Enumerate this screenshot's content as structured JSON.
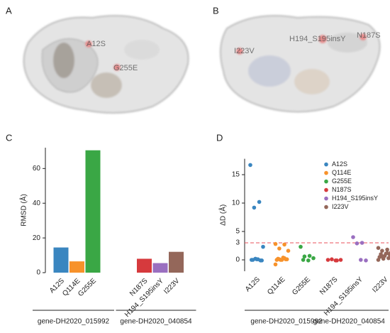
{
  "panels": [
    {
      "label": "A",
      "annotations": [
        "A12S",
        "G255E"
      ]
    },
    {
      "label": "B",
      "annotations": [
        "I223V",
        "H194_S195insY",
        "N187S"
      ]
    }
  ],
  "chart_data": [
    {
      "type": "bar",
      "panel_label": "C",
      "ylabel": "RMSD (Å)",
      "ylim": [
        0,
        72
      ],
      "yticks": [
        0,
        20,
        40,
        60
      ],
      "groups": [
        {
          "label": "gene-DH2020_015992",
          "categories": [
            "A12S",
            "Q114E",
            "G255E"
          ],
          "values": [
            14.5,
            6.5,
            70.5
          ],
          "colors": [
            "#3a86c0",
            "#f7922b",
            "#3aa745"
          ]
        },
        {
          "label": "gene-DH2020_040854",
          "categories": [
            "N187S",
            "H194_S195insY",
            "I223V"
          ],
          "values": [
            8,
            5.5,
            12
          ],
          "colors": [
            "#d63a3d",
            "#9a6fc0",
            "#94675a"
          ]
        }
      ]
    },
    {
      "type": "strip",
      "panel_label": "D",
      "ylabel": "ΔD (Å)",
      "ylim": [
        -2,
        17.8
      ],
      "yticks": [
        0,
        5,
        10,
        15
      ],
      "threshold": 3,
      "threshold_color": "#e8505b",
      "legend": "upper right",
      "groups": [
        {
          "label": "gene-DH2020_015992",
          "series": [
            {
              "name": "A12S",
              "color": "#3a86c0",
              "values": [
                16.7,
                10.2,
                9.2,
                2.3,
                0.1,
                0,
                -0.1,
                0.1,
                0,
                -0.1,
                0.2
              ]
            },
            {
              "name": "Q114E",
              "color": "#f7922b",
              "values": [
                2.8,
                2.7,
                2,
                1.6,
                0.4,
                0.2,
                0.1,
                0,
                0,
                0.1,
                0,
                -0.8,
                0.3,
                0.1
              ]
            },
            {
              "name": "G255E",
              "color": "#3aa745",
              "values": [
                2.3,
                0.7,
                0.6,
                0.3,
                -0.1,
                0
              ]
            }
          ]
        },
        {
          "label": "gene-DH2020_040854",
          "series": [
            {
              "name": "N187S",
              "color": "#d63a3d",
              "values": [
                0,
                -0.1,
                0.1,
                0,
                -0.1
              ]
            },
            {
              "name": "H194_S195insY",
              "color": "#9a6fc0",
              "values": [
                4,
                3,
                2.9,
                -0.1,
                0
              ]
            },
            {
              "name": "I223V",
              "color": "#94675a",
              "values": [
                2.1,
                1.8,
                1.6,
                1.3,
                1.1,
                1,
                0.9,
                0.7,
                0.5,
                0.3,
                0.2,
                0,
                1.2,
                0.6
              ]
            }
          ]
        }
      ]
    }
  ]
}
